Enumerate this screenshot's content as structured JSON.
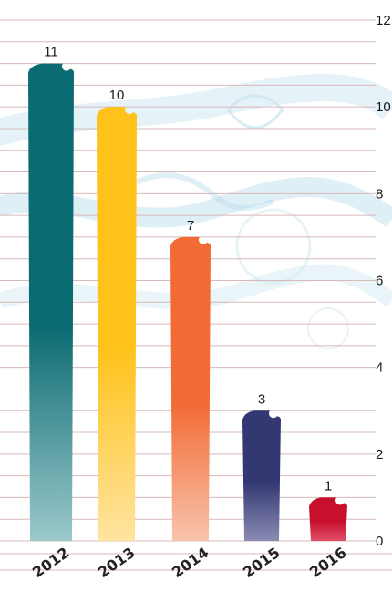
{
  "chart_data": {
    "type": "bar",
    "categories": [
      "2012",
      "2013",
      "2014",
      "2015",
      "2016"
    ],
    "values": [
      11,
      10,
      7,
      3,
      1
    ],
    "data_labels": [
      "11",
      "10",
      "7",
      "3",
      "1"
    ],
    "ylim": [
      0,
      12
    ],
    "yticks": [
      "0",
      "2",
      "4",
      "6",
      "8",
      "10",
      "12"
    ],
    "title": "",
    "xlabel": "",
    "ylabel": "",
    "grid": true,
    "legend": "none",
    "colors": {
      "top": [
        "#0b6b72",
        "#ffc21a",
        "#f26b35",
        "#343872",
        "#c8102e"
      ],
      "bottom": [
        "#9cc9cc",
        "#ffe4a0",
        "#f8c4ad",
        "#8a8cb4",
        "#e25068"
      ],
      "grid": "#d8b9b9",
      "swirl": "#bfe0ee"
    }
  }
}
